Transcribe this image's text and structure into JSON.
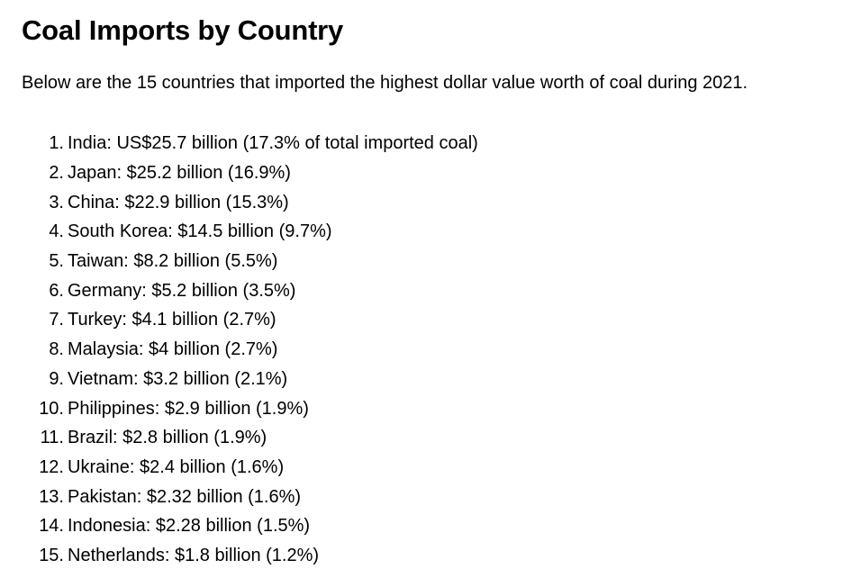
{
  "page": {
    "title": "Coal Imports by Country",
    "intro": "Below are the 15 countries that imported the highest dollar value worth of coal during 2021."
  },
  "list": [
    {
      "rank": "1.",
      "text": "India: US$25.7 billion (17.3% of total imported coal)"
    },
    {
      "rank": "2.",
      "text": "Japan: $25.2 billion (16.9%)"
    },
    {
      "rank": "3.",
      "text": "China: $22.9 billion (15.3%)"
    },
    {
      "rank": "4.",
      "text": "South Korea: $14.5 billion (9.7%)"
    },
    {
      "rank": "5.",
      "text": "Taiwan: $8.2 billion (5.5%)"
    },
    {
      "rank": "6.",
      "text": "Germany: $5.2 billion (3.5%)"
    },
    {
      "rank": "7.",
      "text": "Turkey: $4.1 billion (2.7%)"
    },
    {
      "rank": "8.",
      "text": "Malaysia: $4 billion (2.7%)"
    },
    {
      "rank": "9.",
      "text": "Vietnam: $3.2 billion (2.1%)"
    },
    {
      "rank": "10.",
      "text": "Philippines: $2.9 billion (1.9%)"
    },
    {
      "rank": "11.",
      "text": "Brazil: $2.8 billion (1.9%)"
    },
    {
      "rank": "12.",
      "text": "Ukraine: $2.4 billion (1.6%)"
    },
    {
      "rank": "13.",
      "text": "Pakistan: $2.32 billion (1.6%)"
    },
    {
      "rank": "14.",
      "text": "Indonesia: $2.28 billion (1.5%)"
    },
    {
      "rank": "15.",
      "text": "Netherlands: $1.8 billion (1.2%)"
    }
  ]
}
